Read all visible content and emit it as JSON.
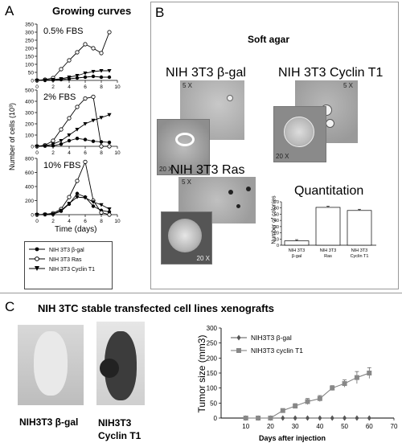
{
  "panels": {
    "a": {
      "letter": "A",
      "title": "Growing curves",
      "ylabel": "Number of cells (10³)",
      "xlabel": "Time (days)",
      "subplots": [
        {
          "label": "0.5% FBS",
          "yticks": [
            "0",
            "50",
            "100",
            "150",
            "200",
            "250",
            "300",
            "350"
          ]
        },
        {
          "label": "2% FBS",
          "yticks": [
            "0",
            "100",
            "200",
            "300",
            "400",
            "500"
          ]
        },
        {
          "label": "10% FBS",
          "yticks": [
            "0",
            "200",
            "400",
            "600",
            "800"
          ]
        }
      ],
      "xticks": [
        "0",
        "2",
        "4",
        "6",
        "8",
        "10"
      ],
      "legend": [
        "NIH 3T3 β-gal",
        "NIH 3T3 Ras",
        "NIH 3T3 Cyclin T1"
      ]
    },
    "b": {
      "letter": "B",
      "title": "Soft agar",
      "images": [
        {
          "label": "NIH 3T3 β-gal",
          "mag_top": "5 X",
          "mag_inset": "20 X"
        },
        {
          "label": "NIH 3T3 Cyclin T1",
          "mag_top": "5 X",
          "mag_inset": "20 X"
        },
        {
          "label": "NIH 3T3 Ras",
          "mag_top": "5 X",
          "mag_inset": "20 X"
        }
      ],
      "quant_title": "Quantitation",
      "quant_ylabel": "Number of colonies",
      "quant_yticks": [
        "0",
        "10",
        "20",
        "30",
        "40",
        "50",
        "60",
        "70"
      ],
      "quant_categories": [
        "NIH 3T3 β-gal",
        "NIH 3T3 Ras",
        "NIH 3T3 Cyclin T1"
      ]
    },
    "c": {
      "letter": "C",
      "title": "NIH 3TC stable transfected cell lines xenografts",
      "photo_labels": [
        "NIH3T3 β-gal",
        "NIH3T3 Cyclin T1"
      ],
      "ylabel": "Tumor size (mm3)",
      "xlabel": "Days after injection",
      "yticks": [
        "0",
        "50",
        "100",
        "150",
        "200",
        "250",
        "300"
      ],
      "xticks": [
        "10",
        "20",
        "30",
        "40",
        "50",
        "60",
        "70"
      ],
      "legend": [
        "NIH3T3 β-gal",
        "NIH3T3 cyclin T1"
      ]
    }
  },
  "chart_data": [
    {
      "type": "line",
      "title": "0.5% FBS",
      "x": [
        0,
        1,
        2,
        3,
        4,
        5,
        6,
        7,
        8,
        9
      ],
      "xlim": [
        0,
        10
      ],
      "ylim": [
        0,
        350
      ],
      "series": [
        {
          "name": "NIH 3T3 β-gal",
          "values": [
            0,
            0,
            2,
            5,
            10,
            15,
            20,
            25,
            20,
            20
          ]
        },
        {
          "name": "NIH 3T3 Ras",
          "values": [
            0,
            5,
            15,
            70,
            125,
            175,
            225,
            200,
            170,
            300
          ]
        },
        {
          "name": "NIH 3T3 Cyclin T1",
          "values": [
            0,
            2,
            5,
            10,
            20,
            30,
            45,
            55,
            60,
            60
          ]
        }
      ]
    },
    {
      "type": "line",
      "title": "2% FBS",
      "x": [
        0,
        1,
        2,
        3,
        4,
        5,
        6,
        7,
        8,
        9
      ],
      "xlim": [
        0,
        10
      ],
      "ylim": [
        0,
        500
      ],
      "series": [
        {
          "name": "NIH 3T3 β-gal",
          "values": [
            0,
            2,
            5,
            20,
            50,
            70,
            60,
            45,
            40,
            35
          ]
        },
        {
          "name": "NIH 3T3 Ras",
          "values": [
            0,
            10,
            50,
            150,
            250,
            350,
            425,
            440,
            0,
            0
          ]
        },
        {
          "name": "NIH 3T3 Cyclin T1",
          "values": [
            0,
            5,
            20,
            50,
            100,
            150,
            200,
            230,
            255,
            280
          ]
        }
      ]
    },
    {
      "type": "line",
      "title": "10% FBS",
      "x": [
        0,
        1,
        2,
        3,
        4,
        5,
        6,
        7,
        8,
        9
      ],
      "xlim": [
        0,
        10
      ],
      "ylim": [
        0,
        800
      ],
      "series": [
        {
          "name": "NIH 3T3 β-gal",
          "values": [
            0,
            0,
            5,
            50,
            150,
            300,
            250,
            120,
            60,
            40
          ]
        },
        {
          "name": "NIH 3T3 Ras",
          "values": [
            0,
            5,
            20,
            80,
            250,
            480,
            750,
            200,
            30,
            0
          ]
        },
        {
          "name": "NIH 3T3 Cyclin T1",
          "values": [
            0,
            0,
            10,
            60,
            160,
            250,
            240,
            180,
            140,
            80
          ]
        }
      ]
    },
    {
      "type": "bar",
      "title": "Quantitation",
      "categories": [
        "NIH 3T3 β-gal",
        "NIH 3T3 Ras",
        "NIH 3T3 Cyclin T1"
      ],
      "values": [
        7,
        61,
        56
      ],
      "errors": [
        2,
        2,
        2
      ],
      "ylabel": "Number of colonies",
      "ylim": [
        0,
        70
      ]
    },
    {
      "type": "line",
      "title": "",
      "xlabel": "Days after injection",
      "ylabel": "Tumor size (mm3)",
      "xlim": [
        0,
        70
      ],
      "ylim": [
        0,
        300
      ],
      "x": [
        10,
        15,
        20,
        25,
        30,
        35,
        40,
        45,
        50,
        55,
        60
      ],
      "series": [
        {
          "name": "NIH3T3 β-gal",
          "values": [
            0,
            0,
            0,
            0,
            0,
            0,
            0,
            0,
            0,
            0,
            0
          ]
        },
        {
          "name": "NIH3T3 cyclin T1",
          "values": [
            0,
            0,
            0,
            25,
            40,
            55,
            65,
            100,
            115,
            135,
            150
          ],
          "errors": [
            0,
            0,
            0,
            5,
            8,
            10,
            10,
            8,
            12,
            20,
            18
          ]
        }
      ]
    }
  ]
}
